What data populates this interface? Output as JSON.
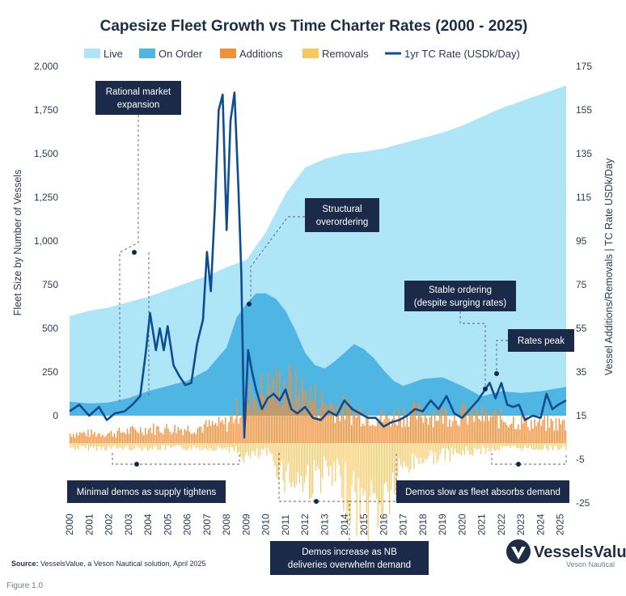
{
  "chart_data": {
    "type": "area",
    "title": "Capesize Fleet Growth vs Time Charter Rates (2000 - 2025)",
    "legend": [
      "Live",
      "On Order",
      "Additions",
      "Removals",
      "1yr TC Rate (USDk/Day)"
    ],
    "legend_position": "top",
    "ylabel": "Fleet Size by Number of Vessels",
    "y2label": "Vessel Additions/Removals | TC Rate USDk/Day",
    "ylim": [
      -500,
      2000
    ],
    "y2lim": [
      -25,
      175
    ],
    "y_ticks": [
      "0",
      "250",
      "500",
      "750",
      "1,000",
      "1,250",
      "1,500",
      "1,750",
      "2,000"
    ],
    "y2_ticks": [
      "-25",
      "-5",
      "15",
      "35",
      "55",
      "75",
      "95",
      "115",
      "135",
      "155",
      "175"
    ],
    "x_ticks": [
      "2000",
      "2001",
      "2002",
      "2003",
      "2004",
      "2005",
      "2006",
      "2007",
      "2008",
      "2009",
      "2010",
      "2011",
      "2012",
      "2013",
      "2014",
      "2015",
      "2016",
      "2017",
      "2018",
      "2019",
      "2020",
      "2021",
      "2022",
      "2023",
      "2024",
      "2025"
    ],
    "series": [
      {
        "name": "Live",
        "color": "#aee6f8",
        "x": [
          2000,
          2001,
          2002,
          2003,
          2004,
          2005,
          2006,
          2007,
          2008,
          2009,
          2010,
          2011,
          2012,
          2013,
          2014,
          2015,
          2016,
          2017,
          2018,
          2019,
          2020,
          2021,
          2022,
          2023,
          2024,
          2025.3
        ],
        "values": [
          570,
          600,
          620,
          650,
          680,
          720,
          760,
          800,
          850,
          890,
          1050,
          1270,
          1420,
          1470,
          1500,
          1510,
          1530,
          1560,
          1590,
          1620,
          1660,
          1710,
          1760,
          1800,
          1840,
          1890
        ]
      },
      {
        "name": "On Order",
        "color": "#4fb5e3",
        "x": [
          2000,
          2001,
          2002,
          2003,
          2004,
          2005,
          2006,
          2007,
          2008,
          2008.5,
          2009,
          2009.5,
          2010,
          2010.5,
          2011,
          2011.5,
          2012,
          2012.5,
          2013,
          2013.5,
          2014,
          2014.5,
          2015,
          2015.5,
          2016,
          2016.5,
          2017,
          2018,
          2019,
          2020,
          2021,
          2022,
          2023,
          2024,
          2025.3
        ],
        "values": [
          80,
          70,
          75,
          100,
          140,
          170,
          200,
          260,
          390,
          560,
          640,
          700,
          700,
          670,
          600,
          490,
          360,
          290,
          270,
          310,
          360,
          410,
          380,
          330,
          260,
          200,
          170,
          210,
          220,
          170,
          110,
          140,
          130,
          140,
          165
        ]
      },
      {
        "name": "Additions",
        "color": "#f0913a",
        "x": [
          2000,
          2002,
          2004,
          2006,
          2008,
          2009,
          2010,
          2011,
          2012,
          2013,
          2014,
          2015,
          2016,
          2017,
          2018,
          2020,
          2022,
          2024,
          2025.3
        ],
        "values": [
          2,
          2,
          3,
          3,
          4,
          9,
          11,
          12,
          10,
          8,
          7,
          6,
          5,
          6,
          6,
          6,
          5,
          4,
          4
        ]
      },
      {
        "name": "Removals",
        "color": "#f6c860",
        "x": [
          2000,
          2002,
          2004,
          2006,
          2008,
          2009,
          2010,
          2011,
          2012,
          2013,
          2014,
          2015,
          2016,
          2017,
          2018,
          2020,
          2022,
          2024,
          2025.3
        ],
        "values": [
          -1,
          -1,
          -1,
          -1,
          -1,
          -3,
          -2,
          -7,
          -8,
          -6,
          -10,
          -14,
          -12,
          -5,
          -3,
          -2,
          -1,
          -1,
          -1
        ]
      },
      {
        "name": "1yr TC Rate (USDk/Day)",
        "color": "#0f4c91",
        "x": [
          2000,
          2000.5,
          2001,
          2001.5,
          2001.9,
          2002.3,
          2002.8,
          2003.2,
          2003.6,
          2003.9,
          2004.1,
          2004.4,
          2004.6,
          2004.8,
          2005.0,
          2005.3,
          2005.6,
          2005.9,
          2006.2,
          2006.5,
          2006.8,
          2007.0,
          2007.2,
          2007.4,
          2007.6,
          2007.8,
          2008.0,
          2008.2,
          2008.4,
          2008.6,
          2008.75,
          2008.9,
          2009.1,
          2009.3,
          2009.5,
          2009.8,
          2010.1,
          2010.4,
          2010.7,
          2011.0,
          2011.3,
          2011.6,
          2012.0,
          2012.4,
          2012.8,
          2013.2,
          2013.6,
          2014.0,
          2014.4,
          2014.8,
          2015.2,
          2015.6,
          2016.0,
          2016.4,
          2016.8,
          2017.2,
          2017.6,
          2018.0,
          2018.4,
          2018.8,
          2019.2,
          2019.6,
          2020.0,
          2020.4,
          2020.8,
          2021.1,
          2021.4,
          2021.7,
          2022.0,
          2022.3,
          2022.6,
          2022.9,
          2023.2,
          2023.6,
          2024.0,
          2024.3,
          2024.6,
          2024.9,
          2025.3
        ],
        "values": [
          17,
          20,
          15,
          19,
          13,
          16,
          17,
          20,
          24,
          45,
          62,
          45,
          55,
          45,
          56,
          38,
          33,
          29,
          30,
          48,
          59,
          90,
          72,
          110,
          155,
          162,
          100,
          150,
          163,
          120,
          80,
          5,
          45,
          35,
          27,
          18,
          23,
          25,
          22,
          27,
          18,
          16,
          19,
          14,
          13,
          17,
          15,
          22,
          18,
          16,
          14,
          14,
          10,
          12,
          13,
          15,
          18,
          17,
          22,
          18,
          24,
          16,
          14,
          18,
          22,
          26,
          30,
          23,
          30,
          20,
          19,
          20,
          13,
          15,
          14,
          25,
          18,
          20,
          22
        ]
      }
    ],
    "annotations": [
      "Rational market expansion",
      "Structural overordering",
      "Stable ordering (despite surging rates)",
      "Rates peak",
      "Minimal demos as supply tightens",
      "Demos increase as NB deliveries overwhelm demand",
      "Demos slow as fleet absorbs demand"
    ],
    "grid": false
  },
  "callouts": {
    "rational_1": "Rational market",
    "rational_2": "expansion",
    "structural_1": "Structural",
    "structural_2": "overordering",
    "stable_1": "Stable ordering",
    "stable_2": "(despite surging rates)",
    "peak": "Rates peak",
    "minimal": "Minimal demos as supply tightens",
    "demos_inc_1": "Demos increase as NB",
    "demos_inc_2": "deliveries overwhelm demand",
    "demos_slow": "Demos slow as fleet absorbs demand"
  },
  "source": {
    "label": "Source:",
    "text": " VesselsValue, a Veson Nautical solution, April 2025"
  },
  "logo": {
    "name": "VesselsValue",
    "sub": "Veson Nautical"
  },
  "figure_label": "Figure 1.0",
  "colors": {
    "title": "#1e2d45",
    "callout_bg": "#1b2a48",
    "peak_marker": "#0f4c91"
  }
}
